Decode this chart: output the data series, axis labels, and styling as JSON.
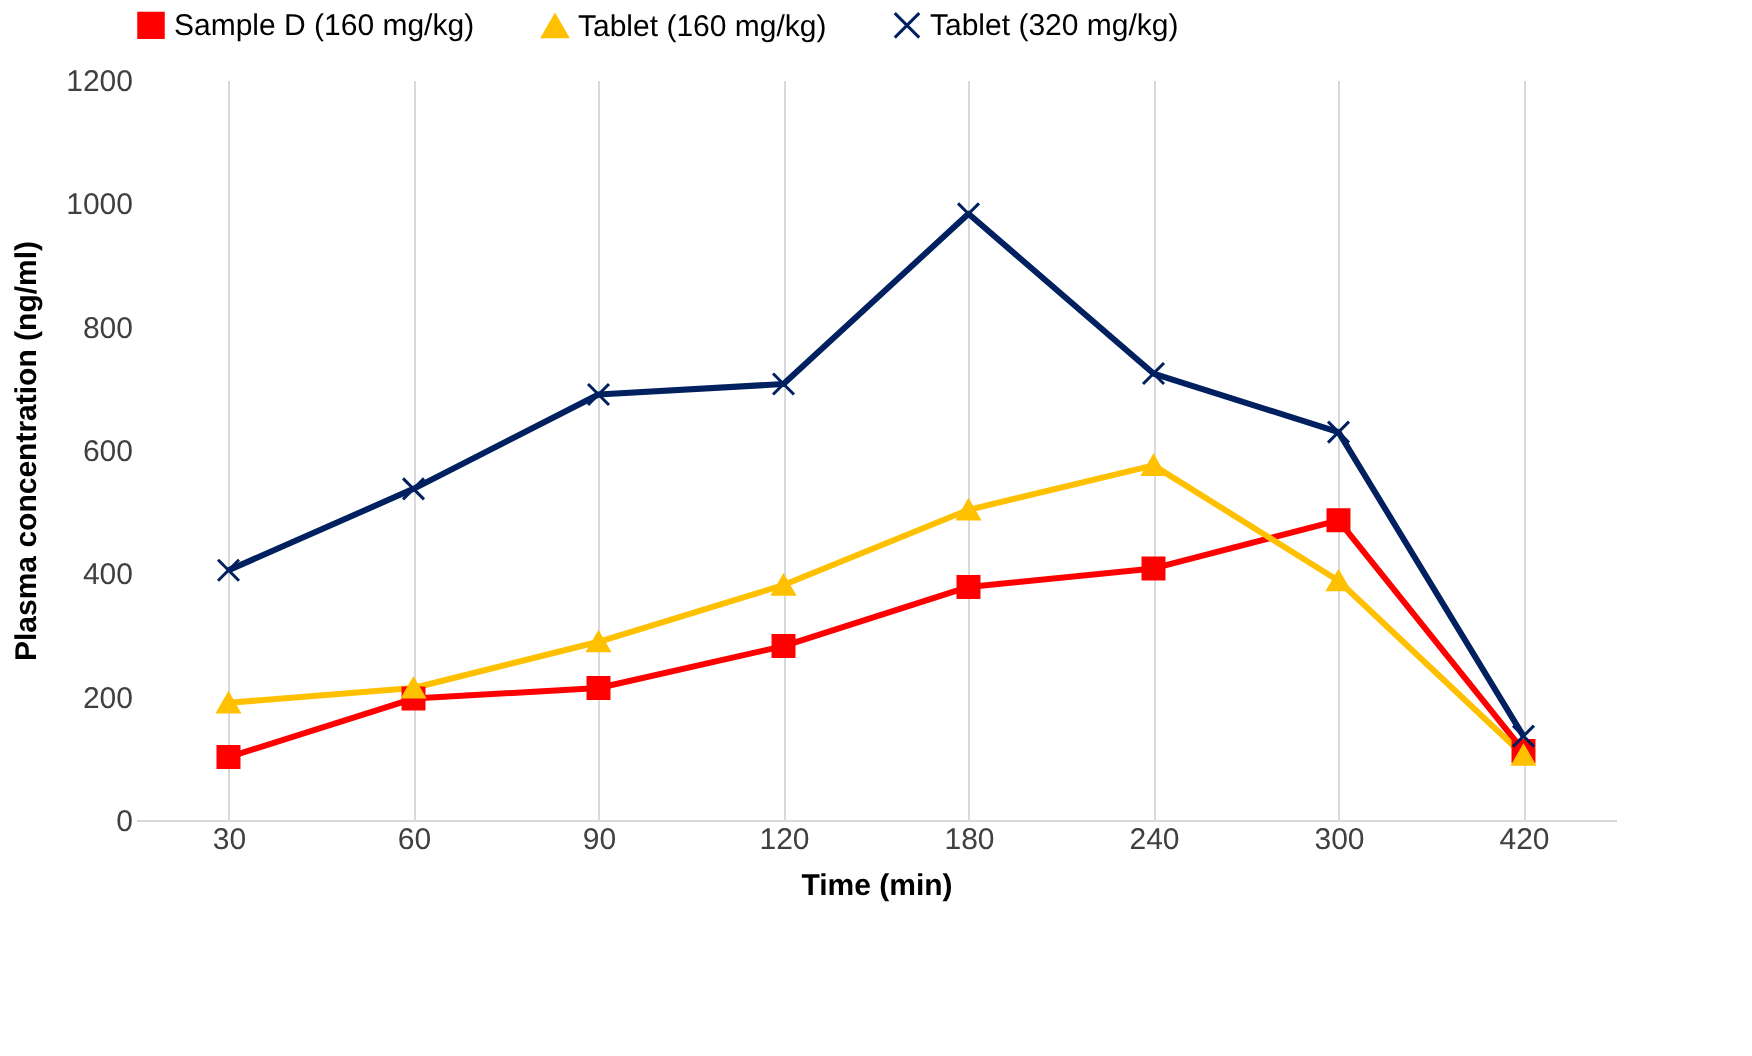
{
  "chart_data": {
    "type": "line",
    "xlabel": "Time (min)",
    "ylabel": "Plasma concentration (ng/ml)",
    "categories": [
      "30",
      "60",
      "90",
      "120",
      "180",
      "240",
      "300",
      "420"
    ],
    "ylim": [
      0,
      1200
    ],
    "yticks": [
      0,
      200,
      400,
      600,
      800,
      1000,
      1200
    ],
    "grid": "x",
    "legend": "top",
    "series": [
      {
        "name": "Sample D (160 mg/kg)",
        "color": "#ff0000",
        "marker": "square",
        "values": [
          102,
          197,
          214,
          282,
          378,
          408,
          486,
          112
        ]
      },
      {
        "name": "Tablet (160 mg/kg)",
        "color": "#ffc000",
        "marker": "triangle",
        "values": [
          190,
          214,
          289,
          381,
          503,
          575,
          388,
          105
        ]
      },
      {
        "name": "Tablet (320 mg/kg)",
        "color": "#002060",
        "marker": "cross",
        "values": [
          405,
          537,
          690,
          707,
          983,
          724,
          629,
          136
        ]
      }
    ]
  }
}
